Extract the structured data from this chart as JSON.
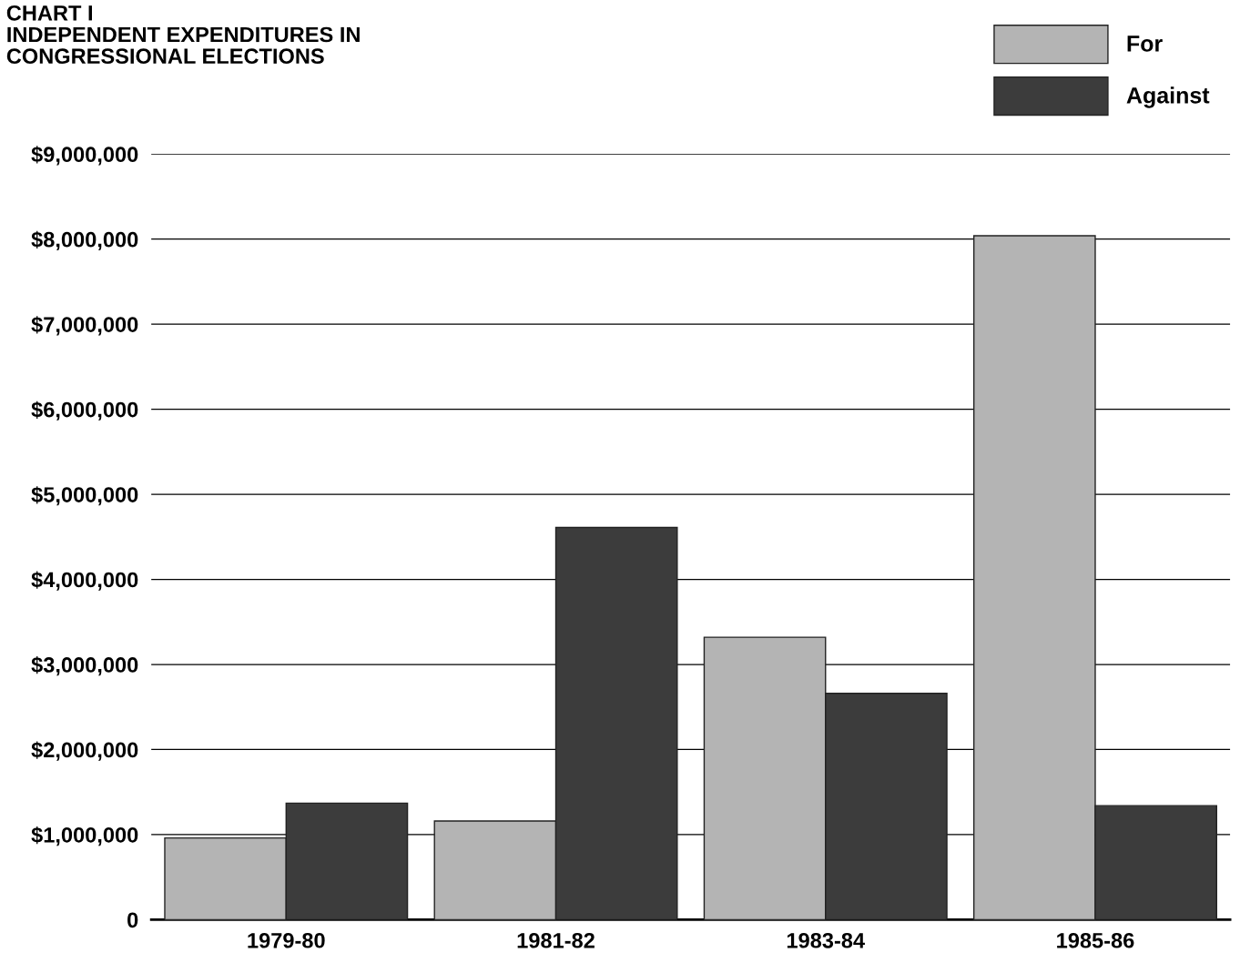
{
  "chart_data": {
    "type": "bar",
    "title": "CHART I\nINDEPENDENT EXPENDITURES IN\nCONGRESSIONAL ELECTIONS",
    "categories": [
      "1979-80",
      "1981-82",
      "1983-84",
      "1985-86"
    ],
    "series": [
      {
        "name": "For",
        "color": "#b4b4b4",
        "values": [
          960000,
          1160000,
          3320000,
          8040000
        ]
      },
      {
        "name": "Against",
        "color": "#3c3c3c",
        "values": [
          1370000,
          4610000,
          2660000,
          1340000
        ]
      }
    ],
    "ylim": [
      0,
      9000000
    ],
    "yticks": [
      0,
      {
        "value": 1000000,
        "label": "$1,000,000"
      },
      {
        "value": 2000000,
        "label": "$2,000,000"
      },
      {
        "value": 3000000,
        "label": "$3,000,000"
      },
      {
        "value": 4000000,
        "label": "$4,000,000"
      },
      {
        "value": 5000000,
        "label": "$5,000,000"
      },
      {
        "value": 6000000,
        "label": "$6,000,000"
      },
      {
        "value": 7000000,
        "label": "$7,000,000"
      },
      {
        "value": 8000000,
        "label": "$8,000,000"
      },
      {
        "value": 9000000,
        "label": "$9,000,000"
      }
    ],
    "grid": "y",
    "legend": "top right"
  }
}
